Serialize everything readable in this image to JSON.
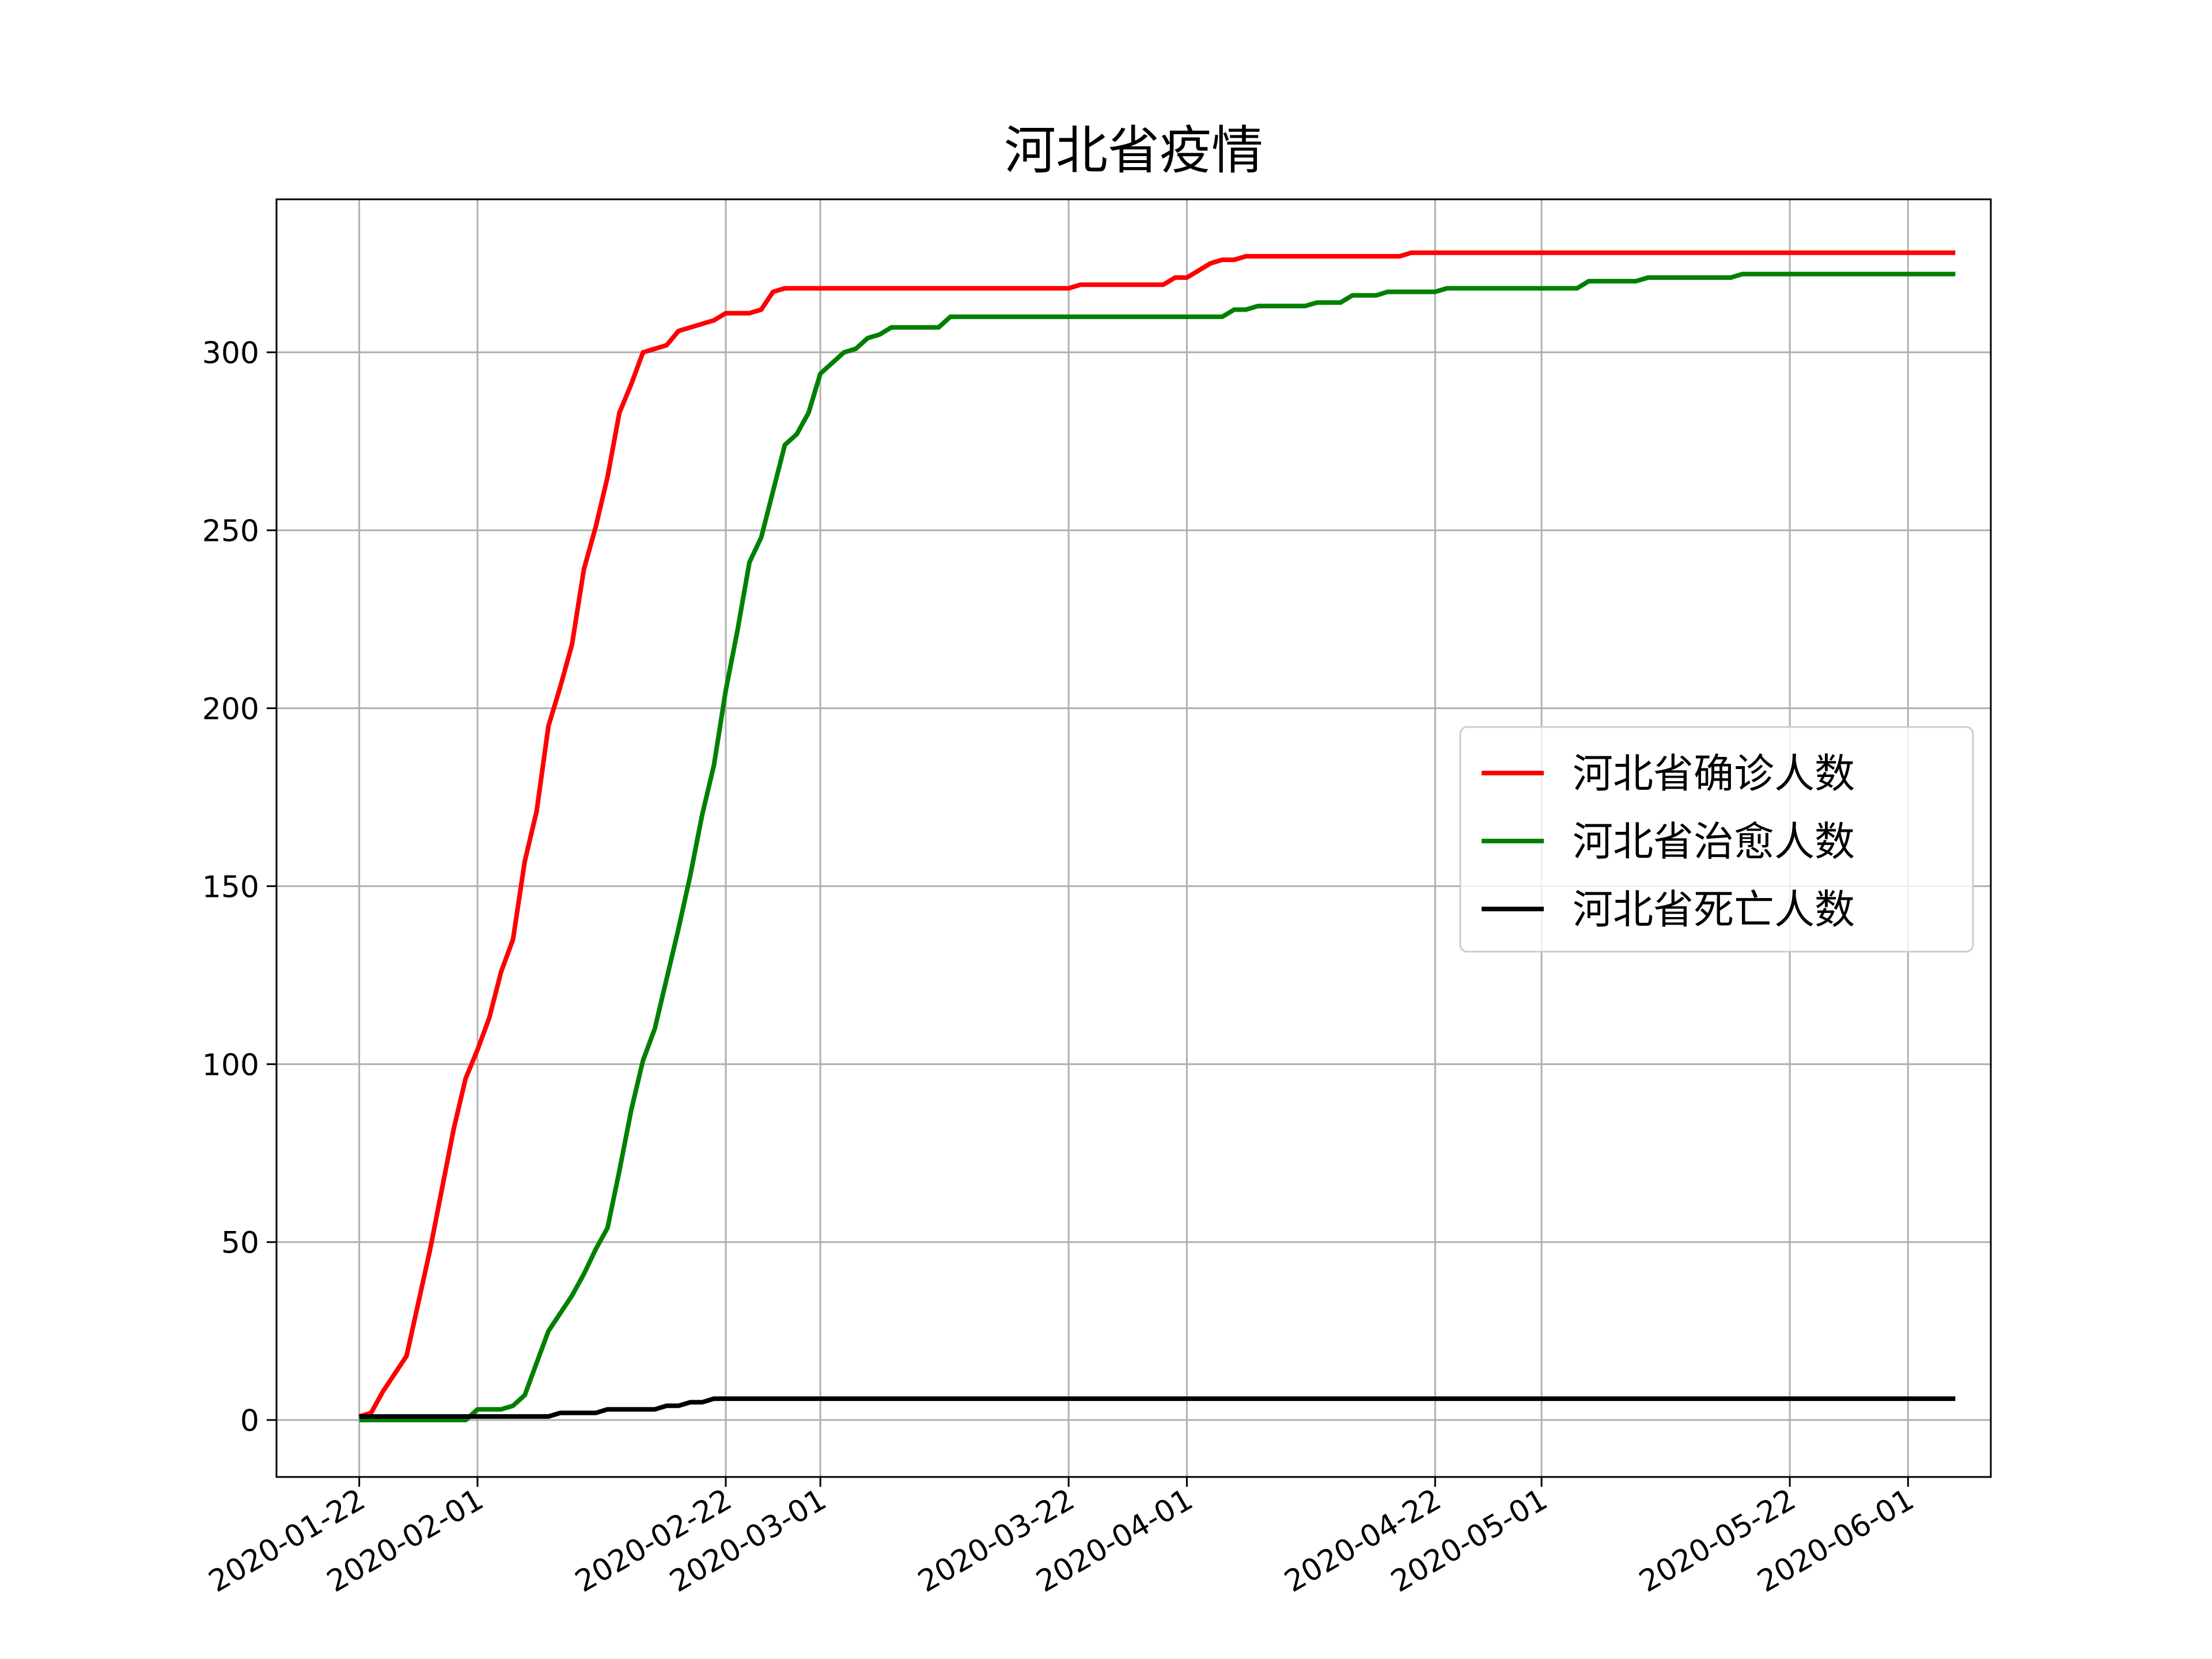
{
  "chart_data": {
    "type": "line",
    "title": "河北省疫情",
    "xlabel": "",
    "ylabel": "",
    "grid": true,
    "legend_position": "center-right",
    "x_range": [
      "2020-01-15",
      "2020-06-08"
    ],
    "ylim": [
      -16,
      343
    ],
    "yticks": [
      0,
      50,
      100,
      150,
      200,
      250,
      300
    ],
    "xticks": [
      "2020-01-22",
      "2020-02-01",
      "2020-02-22",
      "2020-03-01",
      "2020-03-22",
      "2020-04-01",
      "2020-04-22",
      "2020-05-01",
      "2020-05-22",
      "2020-06-01"
    ],
    "series": [
      {
        "name": "河北省确诊人数",
        "color": "#ff0000",
        "points": [
          [
            "2020-01-22",
            1
          ],
          [
            "2020-01-23",
            2
          ],
          [
            "2020-01-24",
            8
          ],
          [
            "2020-01-25",
            13
          ],
          [
            "2020-01-26",
            18
          ],
          [
            "2020-01-27",
            33
          ],
          [
            "2020-01-28",
            48
          ],
          [
            "2020-01-29",
            65
          ],
          [
            "2020-01-30",
            82
          ],
          [
            "2020-01-31",
            96
          ],
          [
            "2020-02-01",
            104
          ],
          [
            "2020-02-02",
            113
          ],
          [
            "2020-02-03",
            126
          ],
          [
            "2020-02-04",
            135
          ],
          [
            "2020-02-05",
            157
          ],
          [
            "2020-02-06",
            171
          ],
          [
            "2020-02-07",
            195
          ],
          [
            "2020-02-08",
            206
          ],
          [
            "2020-02-09",
            218
          ],
          [
            "2020-02-10",
            239
          ],
          [
            "2020-02-11",
            251
          ],
          [
            "2020-02-12",
            265
          ],
          [
            "2020-02-13",
            283
          ],
          [
            "2020-02-14",
            291
          ],
          [
            "2020-02-15",
            300
          ],
          [
            "2020-02-16",
            301
          ],
          [
            "2020-02-17",
            302
          ],
          [
            "2020-02-18",
            306
          ],
          [
            "2020-02-19",
            307
          ],
          [
            "2020-02-20",
            308
          ],
          [
            "2020-02-21",
            309
          ],
          [
            "2020-02-22",
            311
          ],
          [
            "2020-02-23",
            311
          ],
          [
            "2020-02-24",
            311
          ],
          [
            "2020-02-25",
            312
          ],
          [
            "2020-02-26",
            317
          ],
          [
            "2020-02-27",
            318
          ],
          [
            "2020-03-22",
            318
          ],
          [
            "2020-03-23",
            319
          ],
          [
            "2020-03-30",
            319
          ],
          [
            "2020-03-31",
            321
          ],
          [
            "2020-04-01",
            321
          ],
          [
            "2020-04-02",
            323
          ],
          [
            "2020-04-03",
            325
          ],
          [
            "2020-04-04",
            326
          ],
          [
            "2020-04-05",
            326
          ],
          [
            "2020-04-06",
            327
          ],
          [
            "2020-04-19",
            327
          ],
          [
            "2020-04-20",
            328
          ],
          [
            "2020-06-05",
            328
          ]
        ]
      },
      {
        "name": "河北省治愈人数",
        "color": "#008000",
        "points": [
          [
            "2020-01-22",
            0
          ],
          [
            "2020-01-31",
            0
          ],
          [
            "2020-02-01",
            3
          ],
          [
            "2020-02-03",
            3
          ],
          [
            "2020-02-04",
            4
          ],
          [
            "2020-02-05",
            7
          ],
          [
            "2020-02-06",
            16
          ],
          [
            "2020-02-07",
            25
          ],
          [
            "2020-02-08",
            30
          ],
          [
            "2020-02-09",
            35
          ],
          [
            "2020-02-10",
            41
          ],
          [
            "2020-02-11",
            48
          ],
          [
            "2020-02-12",
            54
          ],
          [
            "2020-02-13",
            70
          ],
          [
            "2020-02-14",
            87
          ],
          [
            "2020-02-15",
            101
          ],
          [
            "2020-02-16",
            110
          ],
          [
            "2020-02-17",
            124
          ],
          [
            "2020-02-18",
            138
          ],
          [
            "2020-02-19",
            153
          ],
          [
            "2020-02-20",
            170
          ],
          [
            "2020-02-21",
            184
          ],
          [
            "2020-02-22",
            205
          ],
          [
            "2020-02-23",
            222
          ],
          [
            "2020-02-24",
            241
          ],
          [
            "2020-02-25",
            248
          ],
          [
            "2020-02-26",
            261
          ],
          [
            "2020-02-27",
            274
          ],
          [
            "2020-02-28",
            277
          ],
          [
            "2020-02-29",
            283
          ],
          [
            "2020-03-01",
            294
          ],
          [
            "2020-03-02",
            297
          ],
          [
            "2020-03-03",
            300
          ],
          [
            "2020-03-04",
            301
          ],
          [
            "2020-03-05",
            304
          ],
          [
            "2020-03-06",
            305
          ],
          [
            "2020-03-07",
            307
          ],
          [
            "2020-03-11",
            307
          ],
          [
            "2020-03-12",
            310
          ],
          [
            "2020-04-04",
            310
          ],
          [
            "2020-04-05",
            312
          ],
          [
            "2020-04-06",
            312
          ],
          [
            "2020-04-07",
            313
          ],
          [
            "2020-04-11",
            313
          ],
          [
            "2020-04-12",
            314
          ],
          [
            "2020-04-13",
            314
          ],
          [
            "2020-04-15",
            316
          ],
          [
            "2020-04-17",
            316
          ],
          [
            "2020-04-18",
            317
          ],
          [
            "2020-04-22",
            317
          ],
          [
            "2020-04-23",
            318
          ],
          [
            "2020-05-04",
            318
          ],
          [
            "2020-05-05",
            320
          ],
          [
            "2020-05-09",
            320
          ],
          [
            "2020-05-10",
            321
          ],
          [
            "2020-05-17",
            321
          ],
          [
            "2020-05-18",
            322
          ],
          [
            "2020-06-05",
            322
          ]
        ]
      },
      {
        "name": "河北省死亡人数",
        "color": "#000000",
        "points": [
          [
            "2020-01-22",
            1
          ],
          [
            "2020-02-07",
            1
          ],
          [
            "2020-02-08",
            2
          ],
          [
            "2020-02-11",
            2
          ],
          [
            "2020-02-12",
            3
          ],
          [
            "2020-02-16",
            3
          ],
          [
            "2020-02-17",
            4
          ],
          [
            "2020-02-18",
            4
          ],
          [
            "2020-02-19",
            5
          ],
          [
            "2020-02-20",
            5
          ],
          [
            "2020-02-21",
            6
          ],
          [
            "2020-06-05",
            6
          ]
        ]
      }
    ]
  }
}
